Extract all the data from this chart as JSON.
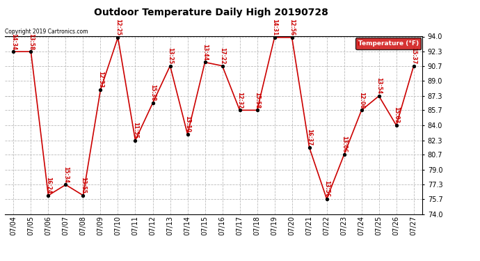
{
  "title": "Outdoor Temperature Daily High 20190728",
  "copyright": "Copyright 2019 Cartronics.com",
  "legend_label": "Temperature (°F)",
  "dates": [
    "07/04",
    "07/05",
    "07/06",
    "07/07",
    "07/08",
    "07/09",
    "07/10",
    "07/11",
    "07/12",
    "07/13",
    "07/14",
    "07/15",
    "07/16",
    "07/17",
    "07/18",
    "07/19",
    "07/20",
    "07/21",
    "07/22",
    "07/23",
    "07/24",
    "07/25",
    "07/26",
    "07/27"
  ],
  "temps": [
    92.3,
    92.3,
    76.1,
    77.3,
    76.1,
    88.0,
    93.9,
    82.3,
    86.5,
    90.7,
    83.0,
    91.1,
    90.7,
    85.7,
    85.7,
    93.9,
    93.9,
    81.5,
    75.7,
    80.7,
    85.7,
    87.3,
    84.0,
    90.7
  ],
  "time_labels": [
    "14:34",
    "13:58",
    "16:24",
    "15:34",
    "13:55",
    "12:33",
    "12:25",
    "11:55",
    "15:38",
    "13:25",
    "13:10",
    "13:44",
    "17:22",
    "12:32",
    "15:58",
    "14:31",
    "12:56",
    "16:37",
    "13:56",
    "13:06",
    "12:06",
    "13:54",
    "15:03",
    "15:37"
  ],
  "ylim": [
    74.0,
    94.0
  ],
  "yticks": [
    74.0,
    75.7,
    77.3,
    79.0,
    80.7,
    82.3,
    84.0,
    85.7,
    87.3,
    89.0,
    90.7,
    92.3,
    94.0
  ],
  "line_color": "#cc0000",
  "marker_color": "#000000",
  "text_color": "#cc0000",
  "bg_color": "#ffffff",
  "grid_color": "#bbbbbb",
  "title_color": "#000000",
  "legend_bg": "#cc0000",
  "legend_text": "#ffffff"
}
